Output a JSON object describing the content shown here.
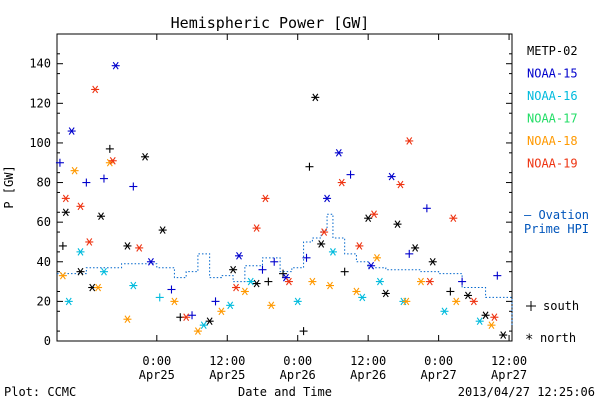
{
  "chart_data": {
    "type": "scatter",
    "title": "Hemispheric Power [GW]",
    "ylabel": "P [GW]",
    "xlabel": "Date and Time",
    "ylim": [
      0,
      155
    ],
    "xlim": [
      "2013-04-24 07:00",
      "2013-04-27 12:30"
    ],
    "y_ticks": [
      0,
      20,
      40,
      60,
      80,
      100,
      120,
      140
    ],
    "x_ticks": [
      {
        "x": "2013-04-25 00:00",
        "time": "0:00",
        "date": "Apr25"
      },
      {
        "x": "2013-04-25 12:00",
        "time": "12:00",
        "date": "Apr25"
      },
      {
        "x": "2013-04-26 00:00",
        "time": "0:00",
        "date": "Apr26"
      },
      {
        "x": "2013-04-26 12:00",
        "time": "12:00",
        "date": "Apr26"
      },
      {
        "x": "2013-04-27 00:00",
        "time": "0:00",
        "date": "Apr27"
      },
      {
        "x": "2013-04-27 12:00",
        "time": "12:00",
        "date": "Apr27"
      }
    ],
    "grid": false,
    "legend_position": "right",
    "symbol_legend": {
      "south": "south",
      "north": "north"
    },
    "series": [
      {
        "name": "METP-02",
        "color": "#000000",
        "points": [
          {
            "x": "2013-04-24 08:00",
            "y": 48,
            "hemi": "south"
          },
          {
            "x": "2013-04-24 08:30",
            "y": 65,
            "hemi": "north"
          },
          {
            "x": "2013-04-24 11:00",
            "y": 35,
            "hemi": "north"
          },
          {
            "x": "2013-04-24 13:00",
            "y": 27,
            "hemi": "north"
          },
          {
            "x": "2013-04-24 14:30",
            "y": 63,
            "hemi": "north"
          },
          {
            "x": "2013-04-24 16:00",
            "y": 97,
            "hemi": "south"
          },
          {
            "x": "2013-04-24 19:00",
            "y": 48,
            "hemi": "north"
          },
          {
            "x": "2013-04-24 22:00",
            "y": 93,
            "hemi": "north"
          },
          {
            "x": "2013-04-25 01:00",
            "y": 56,
            "hemi": "north"
          },
          {
            "x": "2013-04-25 04:00",
            "y": 12,
            "hemi": "south"
          },
          {
            "x": "2013-04-25 09:00",
            "y": 10,
            "hemi": "north"
          },
          {
            "x": "2013-04-25 13:00",
            "y": 36,
            "hemi": "north"
          },
          {
            "x": "2013-04-25 17:00",
            "y": 29,
            "hemi": "north"
          },
          {
            "x": "2013-04-25 19:00",
            "y": 30,
            "hemi": "south"
          },
          {
            "x": "2013-04-25 21:30",
            "y": 34,
            "hemi": "south"
          },
          {
            "x": "2013-04-26 01:00",
            "y": 5,
            "hemi": "south"
          },
          {
            "x": "2013-04-26 02:00",
            "y": 88,
            "hemi": "south"
          },
          {
            "x": "2013-04-26 03:00",
            "y": 123,
            "hemi": "north"
          },
          {
            "x": "2013-04-26 04:00",
            "y": 49,
            "hemi": "north"
          },
          {
            "x": "2013-04-26 08:00",
            "y": 35,
            "hemi": "south"
          },
          {
            "x": "2013-04-26 12:00",
            "y": 62,
            "hemi": "north"
          },
          {
            "x": "2013-04-26 15:00",
            "y": 24,
            "hemi": "north"
          },
          {
            "x": "2013-04-26 17:00",
            "y": 59,
            "hemi": "north"
          },
          {
            "x": "2013-04-26 20:00",
            "y": 47,
            "hemi": "north"
          },
          {
            "x": "2013-04-26 23:00",
            "y": 40,
            "hemi": "north"
          },
          {
            "x": "2013-04-27 02:00",
            "y": 25,
            "hemi": "south"
          },
          {
            "x": "2013-04-27 05:00",
            "y": 23,
            "hemi": "north"
          },
          {
            "x": "2013-04-27 08:00",
            "y": 13,
            "hemi": "north"
          },
          {
            "x": "2013-04-27 11:00",
            "y": 3,
            "hemi": "north"
          }
        ]
      },
      {
        "name": "NOAA-15",
        "color": "#0000cc",
        "points": [
          {
            "x": "2013-04-24 07:30",
            "y": 90,
            "hemi": "south"
          },
          {
            "x": "2013-04-24 09:30",
            "y": 106,
            "hemi": "north"
          },
          {
            "x": "2013-04-24 12:00",
            "y": 80,
            "hemi": "south"
          },
          {
            "x": "2013-04-24 15:00",
            "y": 82,
            "hemi": "south"
          },
          {
            "x": "2013-04-24 17:00",
            "y": 139,
            "hemi": "north"
          },
          {
            "x": "2013-04-24 20:00",
            "y": 78,
            "hemi": "south"
          },
          {
            "x": "2013-04-24 23:00",
            "y": 40,
            "hemi": "north"
          },
          {
            "x": "2013-04-25 02:30",
            "y": 26,
            "hemi": "south"
          },
          {
            "x": "2013-04-25 06:00",
            "y": 13,
            "hemi": "south"
          },
          {
            "x": "2013-04-25 10:00",
            "y": 20,
            "hemi": "south"
          },
          {
            "x": "2013-04-25 14:00",
            "y": 43,
            "hemi": "north"
          },
          {
            "x": "2013-04-25 18:00",
            "y": 36,
            "hemi": "south"
          },
          {
            "x": "2013-04-25 20:00",
            "y": 40,
            "hemi": "south"
          },
          {
            "x": "2013-04-25 22:00",
            "y": 32,
            "hemi": "north"
          },
          {
            "x": "2013-04-26 01:30",
            "y": 42,
            "hemi": "south"
          },
          {
            "x": "2013-04-26 05:00",
            "y": 72,
            "hemi": "north"
          },
          {
            "x": "2013-04-26 07:00",
            "y": 95,
            "hemi": "north"
          },
          {
            "x": "2013-04-26 09:00",
            "y": 84,
            "hemi": "south"
          },
          {
            "x": "2013-04-26 12:30",
            "y": 38,
            "hemi": "north"
          },
          {
            "x": "2013-04-26 16:00",
            "y": 83,
            "hemi": "north"
          },
          {
            "x": "2013-04-26 19:00",
            "y": 44,
            "hemi": "south"
          },
          {
            "x": "2013-04-26 22:00",
            "y": 67,
            "hemi": "south"
          },
          {
            "x": "2013-04-27 04:00",
            "y": 30,
            "hemi": "south"
          },
          {
            "x": "2013-04-27 10:00",
            "y": 33,
            "hemi": "south"
          }
        ]
      },
      {
        "name": "NOAA-16",
        "color": "#00bbdd",
        "points": [
          {
            "x": "2013-04-24 09:00",
            "y": 20,
            "hemi": "north"
          },
          {
            "x": "2013-04-24 11:00",
            "y": 45,
            "hemi": "north"
          },
          {
            "x": "2013-04-24 15:00",
            "y": 35,
            "hemi": "north"
          },
          {
            "x": "2013-04-24 20:00",
            "y": 28,
            "hemi": "north"
          },
          {
            "x": "2013-04-25 00:30",
            "y": 22,
            "hemi": "south"
          },
          {
            "x": "2013-04-25 08:00",
            "y": 8,
            "hemi": "north"
          },
          {
            "x": "2013-04-25 12:30",
            "y": 18,
            "hemi": "north"
          },
          {
            "x": "2013-04-25 16:00",
            "y": 30,
            "hemi": "north"
          },
          {
            "x": "2013-04-26 00:00",
            "y": 20,
            "hemi": "north"
          },
          {
            "x": "2013-04-26 06:00",
            "y": 45,
            "hemi": "north"
          },
          {
            "x": "2013-04-26 11:00",
            "y": 22,
            "hemi": "north"
          },
          {
            "x": "2013-04-26 14:00",
            "y": 30,
            "hemi": "north"
          },
          {
            "x": "2013-04-26 18:00",
            "y": 20,
            "hemi": "north"
          },
          {
            "x": "2013-04-27 01:00",
            "y": 15,
            "hemi": "north"
          },
          {
            "x": "2013-04-27 07:00",
            "y": 10,
            "hemi": "north"
          }
        ]
      },
      {
        "name": "NOAA-17",
        "color": "#22dd66",
        "points": []
      },
      {
        "name": "NOAA-18",
        "color": "#ff9900",
        "points": [
          {
            "x": "2013-04-24 08:00",
            "y": 33,
            "hemi": "north"
          },
          {
            "x": "2013-04-24 10:00",
            "y": 86,
            "hemi": "north"
          },
          {
            "x": "2013-04-24 14:00",
            "y": 27,
            "hemi": "north"
          },
          {
            "x": "2013-04-24 16:00",
            "y": 90,
            "hemi": "north"
          },
          {
            "x": "2013-04-24 19:00",
            "y": 11,
            "hemi": "north"
          },
          {
            "x": "2013-04-25 03:00",
            "y": 20,
            "hemi": "north"
          },
          {
            "x": "2013-04-25 07:00",
            "y": 5,
            "hemi": "north"
          },
          {
            "x": "2013-04-25 11:00",
            "y": 15,
            "hemi": "north"
          },
          {
            "x": "2013-04-25 15:00",
            "y": 25,
            "hemi": "north"
          },
          {
            "x": "2013-04-25 19:30",
            "y": 18,
            "hemi": "north"
          },
          {
            "x": "2013-04-26 02:30",
            "y": 30,
            "hemi": "north"
          },
          {
            "x": "2013-04-26 05:30",
            "y": 28,
            "hemi": "north"
          },
          {
            "x": "2013-04-26 10:00",
            "y": 25,
            "hemi": "north"
          },
          {
            "x": "2013-04-26 13:30",
            "y": 42,
            "hemi": "north"
          },
          {
            "x": "2013-04-26 18:30",
            "y": 20,
            "hemi": "north"
          },
          {
            "x": "2013-04-26 21:00",
            "y": 30,
            "hemi": "north"
          },
          {
            "x": "2013-04-27 03:00",
            "y": 20,
            "hemi": "north"
          },
          {
            "x": "2013-04-27 09:00",
            "y": 8,
            "hemi": "north"
          }
        ]
      },
      {
        "name": "NOAA-19",
        "color": "#ee3311",
        "points": [
          {
            "x": "2013-04-24 08:30",
            "y": 72,
            "hemi": "north"
          },
          {
            "x": "2013-04-24 11:00",
            "y": 68,
            "hemi": "north"
          },
          {
            "x": "2013-04-24 12:30",
            "y": 50,
            "hemi": "north"
          },
          {
            "x": "2013-04-24 13:30",
            "y": 127,
            "hemi": "north"
          },
          {
            "x": "2013-04-24 16:30",
            "y": 91,
            "hemi": "north"
          },
          {
            "x": "2013-04-24 21:00",
            "y": 47,
            "hemi": "north"
          },
          {
            "x": "2013-04-25 05:00",
            "y": 12,
            "hemi": "north"
          },
          {
            "x": "2013-04-25 13:30",
            "y": 27,
            "hemi": "north"
          },
          {
            "x": "2013-04-25 17:00",
            "y": 57,
            "hemi": "north"
          },
          {
            "x": "2013-04-25 18:30",
            "y": 72,
            "hemi": "north"
          },
          {
            "x": "2013-04-25 22:30",
            "y": 30,
            "hemi": "north"
          },
          {
            "x": "2013-04-26 04:30",
            "y": 55,
            "hemi": "north"
          },
          {
            "x": "2013-04-26 07:30",
            "y": 80,
            "hemi": "north"
          },
          {
            "x": "2013-04-26 10:30",
            "y": 48,
            "hemi": "north"
          },
          {
            "x": "2013-04-26 13:00",
            "y": 64,
            "hemi": "north"
          },
          {
            "x": "2013-04-26 17:30",
            "y": 79,
            "hemi": "north"
          },
          {
            "x": "2013-04-26 19:00",
            "y": 101,
            "hemi": "north"
          },
          {
            "x": "2013-04-26 22:30",
            "y": 30,
            "hemi": "north"
          },
          {
            "x": "2013-04-27 02:30",
            "y": 62,
            "hemi": "north"
          },
          {
            "x": "2013-04-27 06:00",
            "y": 20,
            "hemi": "north"
          },
          {
            "x": "2013-04-27 09:30",
            "y": 12,
            "hemi": "north"
          }
        ]
      }
    ],
    "ovation": {
      "name": "Ovation Prime HPI",
      "color": "#0066cc",
      "points": [
        [
          "2013-04-24 07:00",
          34
        ],
        [
          "2013-04-24 12:00",
          37
        ],
        [
          "2013-04-24 18:00",
          39
        ],
        [
          "2013-04-25 00:00",
          37
        ],
        [
          "2013-04-25 03:00",
          32
        ],
        [
          "2013-04-25 05:00",
          35
        ],
        [
          "2013-04-25 07:00",
          44
        ],
        [
          "2013-04-25 09:00",
          32
        ],
        [
          "2013-04-25 11:00",
          33
        ],
        [
          "2013-04-25 13:00",
          30
        ],
        [
          "2013-04-25 15:00",
          38
        ],
        [
          "2013-04-25 18:00",
          42
        ],
        [
          "2013-04-25 21:00",
          35
        ],
        [
          "2013-04-25 23:00",
          37
        ],
        [
          "2013-04-26 01:00",
          50
        ],
        [
          "2013-04-26 02:30",
          52
        ],
        [
          "2013-04-26 04:00",
          56
        ],
        [
          "2013-04-26 05:00",
          64
        ],
        [
          "2013-04-26 06:00",
          52
        ],
        [
          "2013-04-26 08:00",
          44
        ],
        [
          "2013-04-26 10:00",
          40
        ],
        [
          "2013-04-26 12:00",
          37
        ],
        [
          "2013-04-26 15:00",
          36
        ],
        [
          "2013-04-26 18:00",
          36
        ],
        [
          "2013-04-26 21:00",
          35
        ],
        [
          "2013-04-27 00:00",
          34
        ],
        [
          "2013-04-27 04:00",
          27
        ],
        [
          "2013-04-27 08:00",
          22
        ],
        [
          "2013-04-27 12:30",
          8
        ]
      ]
    }
  },
  "labels": {
    "time_ticks": [
      "0:00",
      "12:00",
      "0:00",
      "12:00",
      "0:00",
      "12:00"
    ],
    "date_ticks": [
      "Apr25",
      "Apr25",
      "Apr26",
      "Apr26",
      "Apr27",
      "Apr27"
    ],
    "ovation_line1": "— Ovation",
    "ovation_line2": "Prime HPI",
    "south": "south",
    "north": "north",
    "plot_credit": "Plot: CCMC",
    "timestamp": "2013/04/27 12:25:06"
  }
}
